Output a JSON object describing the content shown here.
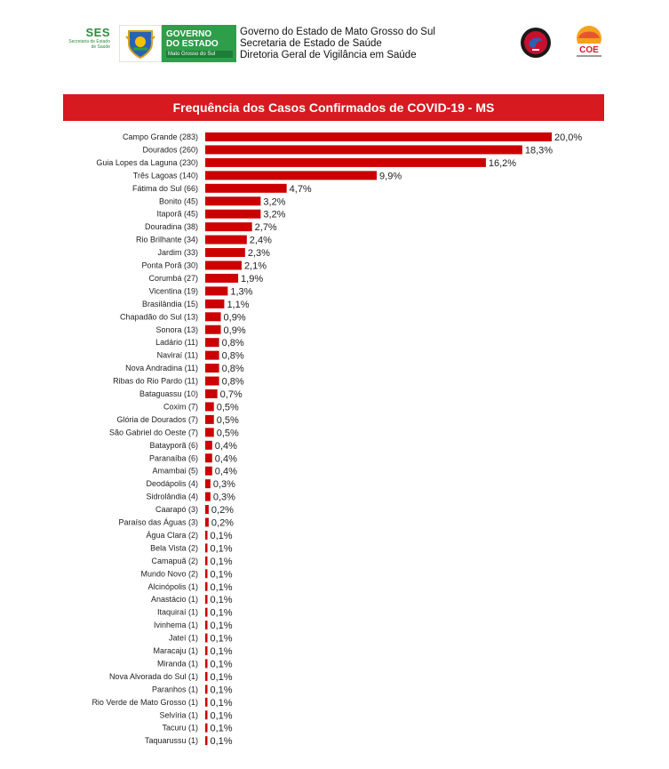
{
  "header": {
    "ses_logo": {
      "word": "SES",
      "subtitle": "Secretaria de Estado de Saúde"
    },
    "gov_logo": {
      "line1": "GOVERNO",
      "line2": "DO ESTADO",
      "line3": "Mato Grosso do Sul"
    },
    "org_lines": [
      "Governo do Estado de Mato Grosso do Sul",
      "Secretaria de Estado de Saúde",
      "Diretoria Geral de Vigilância em Saúde"
    ],
    "coe_badge_text": "COE"
  },
  "colors": {
    "title_bar": "#d71920",
    "bar": "#cc0000",
    "ses_green": "#2e8b3d",
    "gov_green": "#2e9e4a"
  },
  "chart_data": {
    "type": "bar",
    "orientation": "horizontal",
    "title": "Frequência dos Casos Confirmados de COVID-19 - MS",
    "xlabel": "",
    "ylabel": "",
    "xlim": [
      0,
      20.0
    ],
    "grid": false,
    "categories": [
      "Campo Grande (283)",
      "Dourados (260)",
      "Guia Lopes da Laguna (230)",
      "Três Lagoas (140)",
      "Fátima do Sul (66)",
      "Bonito (45)",
      "Itaporã (45)",
      "Douradina (38)",
      "Rio Brilhante (34)",
      "Jardim (33)",
      "Ponta Porã (30)",
      "Corumbá (27)",
      "Vicentina (19)",
      "Brasilândia (15)",
      "Chapadão do Sul (13)",
      "Sonora (13)",
      "Ladário (11)",
      "Naviraí (11)",
      "Nova Andradina (11)",
      "Ribas do Rio Pardo (11)",
      "Bataguassu (10)",
      "Coxim (7)",
      "Glória de Dourados (7)",
      "São Gabriel do Oeste (7)",
      "Batayporã (6)",
      "Paranaíba (6)",
      "Amambai (5)",
      "Deodápolis (4)",
      "Sidrolândia (4)",
      "Caarapó (3)",
      "Paraíso das Águas (3)",
      "Água Clara (2)",
      "Bela Vista (2)",
      "Camapuã (2)",
      "Mundo Novo (2)",
      "Alcinópolis (1)",
      "Anastácio (1)",
      "Itaquiraí (1)",
      "Ivinhema (1)",
      "Jateí (1)",
      "Maracaju (1)",
      "Miranda (1)",
      "Nova Alvorada do Sul (1)",
      "Paranhos (1)",
      "Rio Verde de Mato Grosso (1)",
      "Selvíria (1)",
      "Tacuru (1)",
      "Taquarussu (1)"
    ],
    "values": [
      20.0,
      18.3,
      16.2,
      9.9,
      4.7,
      3.2,
      3.2,
      2.7,
      2.4,
      2.3,
      2.1,
      1.9,
      1.3,
      1.1,
      0.9,
      0.9,
      0.8,
      0.8,
      0.8,
      0.8,
      0.7,
      0.5,
      0.5,
      0.5,
      0.4,
      0.4,
      0.4,
      0.3,
      0.3,
      0.2,
      0.2,
      0.1,
      0.1,
      0.1,
      0.1,
      0.1,
      0.1,
      0.1,
      0.1,
      0.1,
      0.1,
      0.1,
      0.1,
      0.1,
      0.1,
      0.1,
      0.1,
      0.1
    ],
    "value_labels": [
      "20,0%",
      "18,3%",
      "16,2%",
      "9,9%",
      "4,7%",
      "3,2%",
      "3,2%",
      "2,7%",
      "2,4%",
      "2,3%",
      "2,1%",
      "1,9%",
      "1,3%",
      "1,1%",
      "0,9%",
      "0,9%",
      "0,8%",
      "0,8%",
      "0,8%",
      "0,8%",
      "0,7%",
      "0,5%",
      "0,5%",
      "0,5%",
      "0,4%",
      "0,4%",
      "0,4%",
      "0,3%",
      "0,3%",
      "0,2%",
      "0,2%",
      "0,1%",
      "0,1%",
      "0,1%",
      "0,1%",
      "0,1%",
      "0,1%",
      "0,1%",
      "0,1%",
      "0,1%",
      "0,1%",
      "0,1%",
      "0,1%",
      "0,1%",
      "0,1%",
      "0,1%",
      "0,1%",
      "0,1%"
    ]
  }
}
